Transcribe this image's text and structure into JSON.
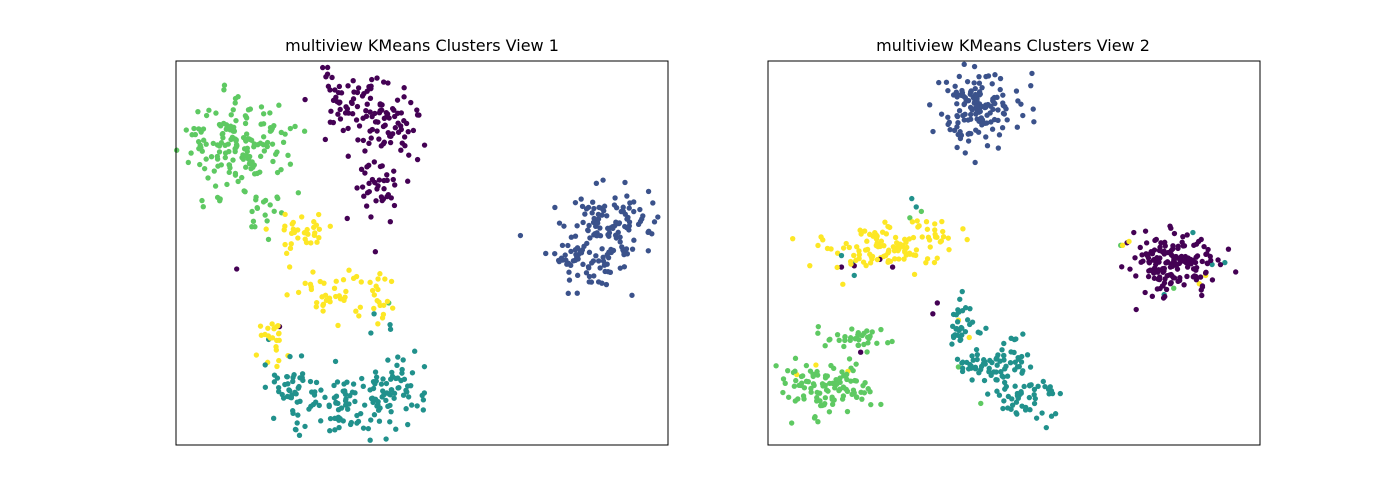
{
  "figure": {
    "background": "#ffffff"
  },
  "chart_data": [
    {
      "type": "scatter",
      "title": "multiview KMeans Clusters View 1",
      "xlabel": "",
      "ylabel": "",
      "xlim": [
        -33,
        44
      ],
      "ylim": [
        -26,
        34
      ],
      "grid": false,
      "ticks": false,
      "point_radius_data": 0.42,
      "seed": 11,
      "clusters": [
        {
          "label": 0,
          "color": "#440154",
          "count": 160,
          "blobs": [
            {
              "cx": -5,
              "cy": 28,
              "sx": 3.3,
              "sy": 2.2,
              "w": 0.4
            },
            {
              "cx": 0,
              "cy": 23,
              "sx": 2.2,
              "sy": 2.2,
              "w": 0.35
            },
            {
              "cx": -1.5,
              "cy": 15,
              "sx": 1.7,
              "sy": 2.4,
              "w": 0.25
            }
          ],
          "extra_points": [
            [
              -1.8,
              4.2
            ],
            [
              -6.2,
              9.4
            ],
            [
              -23.5,
              1.5
            ],
            [
              -16.8,
              -7.5
            ]
          ]
        },
        {
          "label": 1,
          "color": "#3b528b",
          "count": 170,
          "blobs": [
            {
              "cx": 35,
              "cy": 9,
              "sx": 3.5,
              "sy": 2.8,
              "w": 0.5
            },
            {
              "cx": 32,
              "cy": 3,
              "sx": 3.2,
              "sy": 2.6,
              "w": 0.5
            }
          ],
          "extra_points": []
        },
        {
          "label": 2,
          "color": "#21918c",
          "count": 180,
          "blobs": [
            {
              "cx": -6.5,
              "cy": -19.5,
              "sx": 4.8,
              "sy": 2.2,
              "w": 0.55
            },
            {
              "cx": -14.5,
              "cy": -16.5,
              "sx": 2.2,
              "sy": 2.2,
              "w": 0.2
            },
            {
              "cx": 1.5,
              "cy": -15.5,
              "sx": 2.3,
              "sy": 2.4,
              "w": 0.25
            }
          ],
          "extra_points": [
            [
              -2,
              -5.5
            ],
            [
              0.5,
              -7.2
            ],
            [
              -2.5,
              -8.5
            ],
            [
              -18.5,
              -9.5
            ]
          ]
        },
        {
          "label": 3,
          "color": "#5ec962",
          "count": 180,
          "blobs": [
            {
              "cx": -23.5,
              "cy": 21,
              "sx": 4.2,
              "sy": 3.8,
              "w": 0.9
            },
            {
              "cx": -19.5,
              "cy": 10.5,
              "sx": 1.8,
              "sy": 1.4,
              "w": 0.1
            }
          ],
          "extra_points": [
            [
              -25.5,
              29.5
            ],
            [
              0.3,
              -3.8
            ]
          ]
        },
        {
          "label": 4,
          "color": "#fde725",
          "count": 110,
          "blobs": [
            {
              "cx": -13,
              "cy": 7.5,
              "sx": 2.2,
              "sy": 1.5,
              "w": 0.3
            },
            {
              "cx": -7.5,
              "cy": -2,
              "sx": 3.2,
              "sy": 2.2,
              "w": 0.35
            },
            {
              "cx": -18,
              "cy": -9,
              "sx": 1.2,
              "sy": 2.4,
              "w": 0.2
            },
            {
              "cx": -2.2,
              "cy": -2.5,
              "sx": 1.3,
              "sy": 2.5,
              "w": 0.15
            }
          ],
          "extra_points": []
        }
      ]
    },
    {
      "type": "scatter",
      "title": "multiview KMeans Clusters View 2",
      "xlabel": "",
      "ylabel": "",
      "xlim": [
        -33,
        44
      ],
      "ylim": [
        -26,
        34
      ],
      "grid": false,
      "ticks": false,
      "point_radius_data": 0.42,
      "seed": 29,
      "clusters": [
        {
          "label": 0,
          "color": "#440154",
          "count": 170,
          "blobs": [
            {
              "cx": 30.5,
              "cy": 2.5,
              "sx": 3.3,
              "sy": 2.2,
              "w": 1.0
            }
          ],
          "extra_points": [
            [
              -19.5,
              2
            ],
            [
              -21.5,
              1.8
            ],
            [
              -13.5,
              1.8
            ],
            [
              -18.5,
              -11.5
            ],
            [
              -7.2,
              -5.5
            ],
            [
              -6.5,
              -3.8
            ],
            [
              23.2,
              5.6
            ],
            [
              -15.5,
              3.0
            ]
          ]
        },
        {
          "label": 1,
          "color": "#3b528b",
          "count": 140,
          "blobs": [
            {
              "cx": 0,
              "cy": 27,
              "sx": 3.2,
              "sy": 2.9,
              "w": 1.0
            }
          ],
          "extra_points": []
        },
        {
          "label": 2,
          "color": "#21918c",
          "count": 150,
          "blobs": [
            {
              "cx": 2.5,
              "cy": -13,
              "sx": 2.6,
              "sy": 2.0,
              "w": 0.45
            },
            {
              "cx": 7,
              "cy": -18.5,
              "sx": 2.8,
              "sy": 2.0,
              "w": 0.35
            },
            {
              "cx": -3,
              "cy": -7,
              "sx": 1.0,
              "sy": 2.2,
              "w": 0.2
            }
          ],
          "extra_points": [
            [
              -10.5,
              12.5
            ],
            [
              -9.8,
              11.2
            ],
            [
              -21.5,
              3.6
            ],
            [
              -19.8,
              2.4
            ],
            [
              -19.5,
              0.5
            ],
            [
              33.5,
              7.2
            ],
            [
              36.5,
              2.2
            ],
            [
              38.5,
              2.5
            ],
            [
              29,
              -2.5
            ],
            [
              0.2,
              -8.5
            ]
          ]
        },
        {
          "label": 3,
          "color": "#5ec962",
          "count": 140,
          "blobs": [
            {
              "cx": -24,
              "cy": -17,
              "sx": 3.3,
              "sy": 2.3,
              "w": 0.75
            },
            {
              "cx": -19.5,
              "cy": -9.3,
              "sx": 2.6,
              "sy": 0.7,
              "w": 0.25
            }
          ],
          "extra_points": [
            [
              -9,
              10.5
            ],
            [
              -10.8,
              9.5
            ],
            [
              -3.2,
              -13.8
            ],
            [
              -20,
              -14.0
            ],
            [
              0.3,
              -19.5
            ],
            [
              30.5,
              -1.5
            ],
            [
              22.2,
              5.2
            ]
          ]
        },
        {
          "label": 4,
          "color": "#fde725",
          "count": 120,
          "blobs": [
            {
              "cx": -15,
              "cy": 4.5,
              "sx": 4.2,
              "sy": 1.7,
              "w": 0.85
            },
            {
              "cx": -6.5,
              "cy": 7.5,
              "sx": 2.6,
              "sy": 1.0,
              "w": 0.15
            }
          ],
          "extra_points": [
            [
              -28.5,
              -15
            ],
            [
              -25.5,
              -13.5
            ],
            [
              -20.5,
              -14.5
            ],
            [
              -3.2,
              -6.5
            ],
            [
              -1.5,
              -9.2
            ],
            [
              23.5,
              5.8
            ],
            [
              22.5,
              5.2
            ],
            [
              34.5,
              -0.8
            ],
            [
              35.5,
              0.5
            ]
          ]
        }
      ]
    }
  ]
}
